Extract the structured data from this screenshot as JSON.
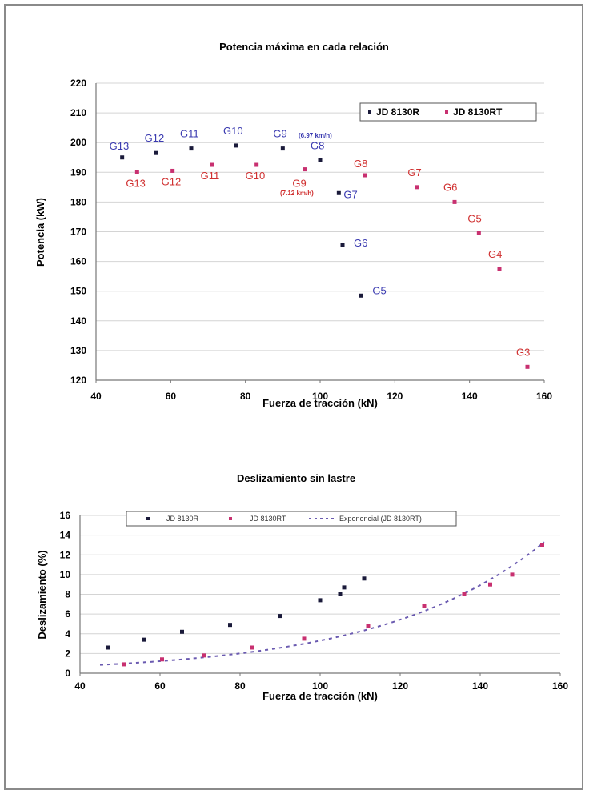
{
  "colors": {
    "r_series": "#1a1a3a",
    "rt_series": "#c83070",
    "label_r": "#3a3ab0",
    "label_rt": "#d03030",
    "trend": "#6a5ab0"
  },
  "chart_data": [
    {
      "type": "scatter",
      "title": "Potencia máxima en cada relación",
      "xlabel": "Fuerza de tracción (kN)",
      "ylabel": "Potencia (kW)",
      "xlim": [
        40,
        160
      ],
      "ylim": [
        120,
        220
      ],
      "xticks": [
        "40",
        "60",
        "80",
        "100",
        "120",
        "140",
        "160"
      ],
      "yticks": [
        "120",
        "130",
        "140",
        "150",
        "160",
        "170",
        "180",
        "190",
        "200",
        "210",
        "220"
      ],
      "grid": "horizontal",
      "legend_placement": "top-right",
      "legend": [
        "JD 8130R",
        "JD 8130RT"
      ],
      "series": [
        {
          "name": "JD 8130R",
          "points": [
            [
              47,
              195
            ],
            [
              56,
              196.5
            ],
            [
              65.5,
              198
            ],
            [
              77.5,
              199
            ],
            [
              90,
              198
            ],
            [
              100,
              194
            ],
            [
              105,
              183
            ],
            [
              106,
              165.5
            ],
            [
              111,
              148.5
            ]
          ],
          "labels": [
            "G13",
            "G12",
            "G11",
            "G10",
            "G9",
            "G8",
            "G7",
            "G6",
            "G5"
          ]
        },
        {
          "name": "JD 8130RT",
          "points": [
            [
              51,
              190
            ],
            [
              60.5,
              190.5
            ],
            [
              71,
              192.5
            ],
            [
              83,
              192.5
            ],
            [
              96,
              191
            ],
            [
              112,
              189
            ],
            [
              126,
              185
            ],
            [
              136,
              180
            ],
            [
              142.5,
              169.5
            ],
            [
              148,
              157.5
            ],
            [
              155.5,
              124.5
            ]
          ],
          "labels": [
            "G13",
            "G12",
            "G11",
            "G10",
            "G9",
            "G8",
            "G7",
            "G6",
            "G5",
            "G4",
            "G3"
          ]
        }
      ],
      "annotations": [
        "(6.97 km/h)",
        "(7.12 km/h)"
      ]
    },
    {
      "type": "scatter",
      "title": "Deslizamiento sin lastre",
      "xlabel": "Fuerza de tracción (kN)",
      "ylabel": "Deslizamiento (%)",
      "xlim": [
        40,
        160
      ],
      "ylim": [
        0,
        16
      ],
      "xticks": [
        "40",
        "60",
        "80",
        "100",
        "120",
        "140",
        "160"
      ],
      "yticks": [
        "0",
        "2",
        "4",
        "6",
        "8",
        "10",
        "12",
        "14",
        "16"
      ],
      "grid": "horizontal",
      "legend_placement": "top",
      "legend": [
        "JD 8130R",
        "JD 8130RT",
        "Exponencial (JD 8130RT)"
      ],
      "series": [
        {
          "name": "JD 8130R",
          "points": [
            [
              47,
              2.6
            ],
            [
              56,
              3.4
            ],
            [
              65.5,
              4.2
            ],
            [
              77.5,
              4.9
            ],
            [
              90,
              5.8
            ],
            [
              100,
              7.4
            ],
            [
              105,
              8.0
            ],
            [
              106,
              8.7
            ],
            [
              111,
              9.6
            ]
          ]
        },
        {
          "name": "JD 8130RT",
          "points": [
            [
              51,
              0.9
            ],
            [
              60.5,
              1.4
            ],
            [
              71,
              1.8
            ],
            [
              83,
              2.6
            ],
            [
              96,
              3.5
            ],
            [
              112,
              4.8
            ],
            [
              126,
              6.8
            ],
            [
              136,
              8.0
            ],
            [
              142.5,
              9.0
            ],
            [
              148,
              10.0
            ],
            [
              155.5,
              13.0
            ]
          ]
        },
        {
          "name": "Exponencial (JD 8130RT)",
          "type": "trendline",
          "x_range": [
            45,
            156
          ],
          "a": 0.2746,
          "b": 0.02487
        }
      ]
    }
  ]
}
